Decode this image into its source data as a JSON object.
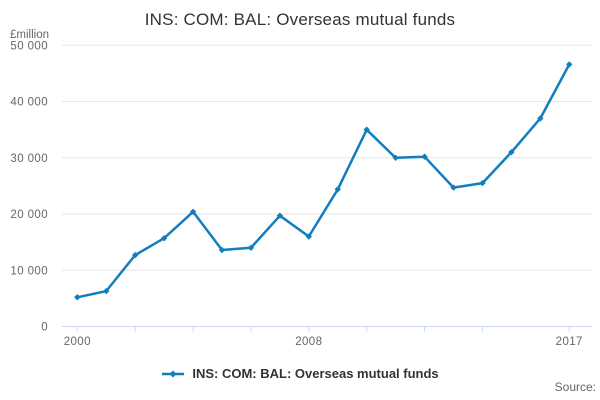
{
  "header": {
    "title": "INS: COM: BAL: Overseas mutual funds"
  },
  "y_axis": {
    "unit_label": "£million",
    "tick_labels": [
      "0",
      "10 000",
      "20 000",
      "30 000",
      "40 000",
      "50 000"
    ]
  },
  "x_axis": {
    "labeled_ticks": [
      {
        "year": 2000,
        "label": "2000"
      },
      {
        "year": 2008,
        "label": "2008"
      },
      {
        "year": 2017,
        "label": "2017"
      }
    ],
    "tick_mark_years": [
      2000,
      2002,
      2004,
      2006,
      2008,
      2010,
      2012,
      2014,
      2017
    ]
  },
  "legend": {
    "label": "INS: COM: BAL: Overseas mutual funds"
  },
  "footer": {
    "source_label": "Source:"
  },
  "colors": {
    "line": "#137ebd",
    "grid": "#e6e6e6",
    "axis": "#ccd6eb",
    "tick_text": "#666666",
    "title_text": "#333333",
    "legend_text": "#333333",
    "source_text": "#666666"
  },
  "chart_data": {
    "type": "line",
    "title": "INS: COM: BAL: Overseas mutual funds",
    "xlabel": "",
    "ylabel": "£million",
    "x": [
      2000,
      2001,
      2002,
      2003,
      2004,
      2005,
      2006,
      2007,
      2008,
      2009,
      2010,
      2011,
      2012,
      2013,
      2014,
      2015,
      2016,
      2017
    ],
    "series": [
      {
        "name": "INS: COM: BAL: Overseas mutual funds",
        "values": [
          5200,
          6300,
          12700,
          15700,
          20400,
          13600,
          14000,
          19700,
          16000,
          24400,
          35000,
          30000,
          30200,
          24700,
          25500,
          31000,
          37000,
          46600
        ]
      }
    ],
    "ylim": [
      0,
      50000
    ],
    "yticks": [
      0,
      10000,
      20000,
      30000,
      40000,
      50000
    ],
    "grid": true,
    "legend_position": "bottom",
    "marker": "diamond"
  }
}
